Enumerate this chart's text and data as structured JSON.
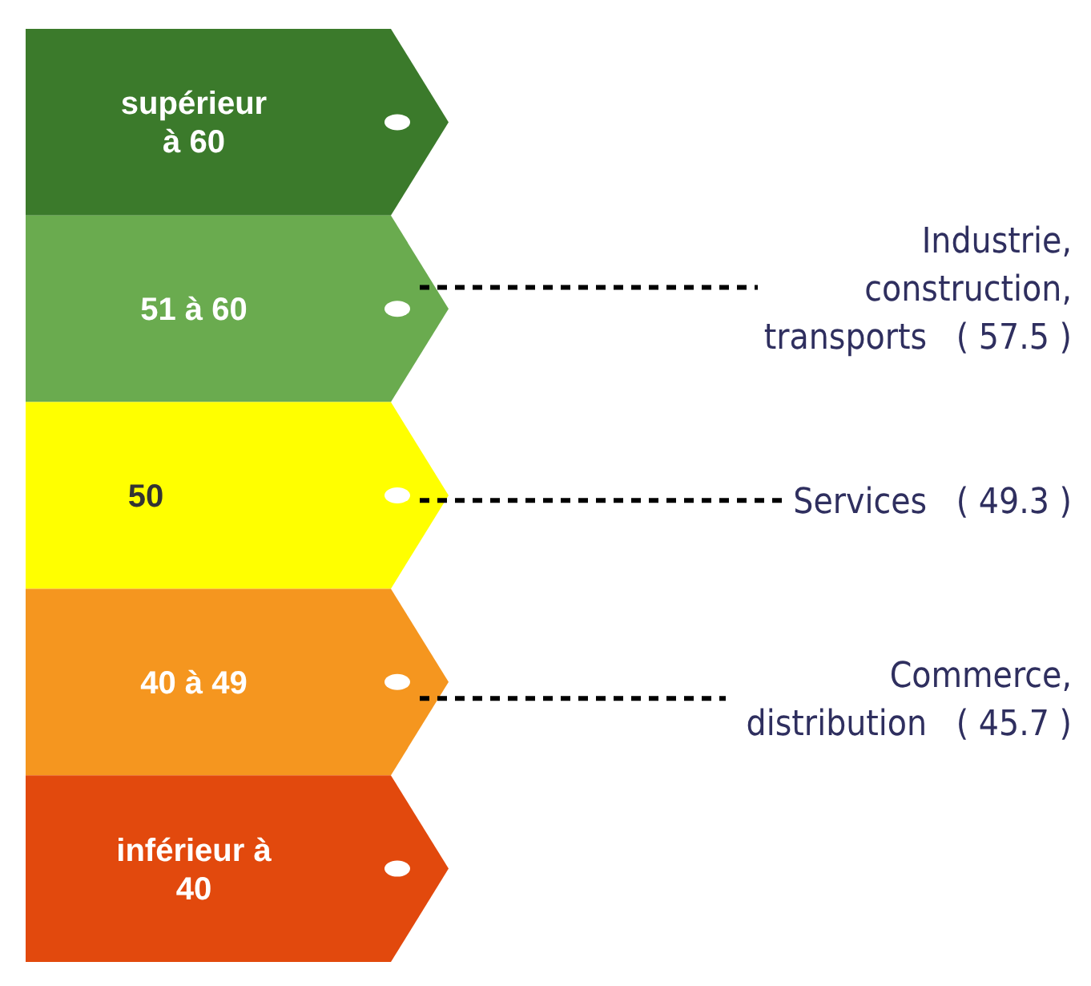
{
  "chart_data": {
    "type": "other",
    "categories": [
      "supérieur\nà 60",
      "51 à 60",
      "50",
      "40 à 49",
      "inférieur à\n40"
    ],
    "colors": [
      "#3b7a2b",
      "#6aab4f",
      "#ffff00",
      "#f5961f",
      "#e2490d"
    ],
    "series": [
      {
        "name": "Industrie,\nconstruction,\ntransports",
        "color": "#2f2f5f",
        "values": [
          null,
          57.5,
          null,
          null,
          null
        ],
        "value_labels": [
          null,
          "( 57.5 )",
          null,
          null,
          null
        ]
      },
      {
        "name": "Services",
        "color": "#2f2f5f",
        "values": [
          null,
          null,
          49.3,
          null,
          null
        ],
        "value_labels": [
          null,
          null,
          "( 49.3 )",
          null,
          null
        ]
      },
      {
        "name": "Commerce,\ndistribution",
        "color": "#2f2f5f",
        "values": [
          null,
          null,
          null,
          45.7,
          null
        ],
        "value_labels": [
          null,
          null,
          null,
          "( 45.7 )",
          null
        ]
      }
    ]
  }
}
